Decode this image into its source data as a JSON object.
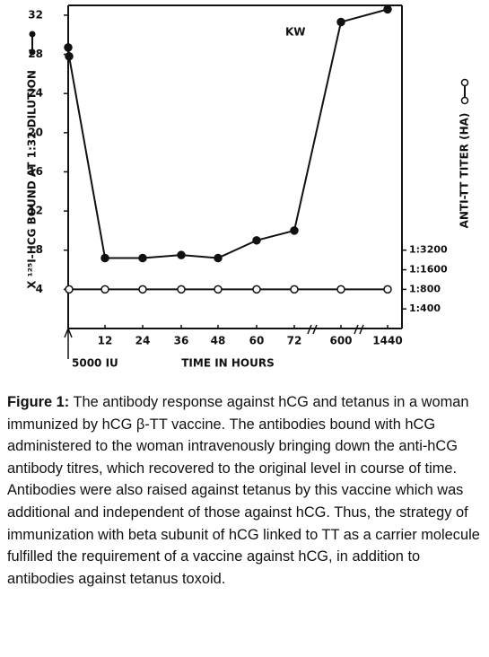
{
  "chart_data": {
    "type": "line",
    "annotations": [
      "KW",
      "5000 IU"
    ],
    "xlabel": "TIME IN HOURS",
    "ylabel": "X ¹²⁵I-HCG BOUND AT 1:32 DILUTION",
    "y2label": "ANTI-TT TITER (HA)",
    "categories": [
      null,
      null,
      "12",
      "24",
      "36",
      "48",
      "60",
      "72",
      "600",
      "1440"
    ],
    "ylim": [
      0,
      33
    ],
    "yticks": [
      4,
      8,
      12,
      16,
      20,
      24,
      28,
      32
    ],
    "y2lim": [
      200,
      18536380
    ],
    "y2scale": "log",
    "y2ticks": [
      {
        "value": 400,
        "label": "1:400"
      },
      {
        "value": 800,
        "label": "1:800"
      },
      {
        "value": 1600,
        "label": "1:1600"
      },
      {
        "value": 3200,
        "label": "1:3200"
      }
    ],
    "series": [
      {
        "name": "hCG",
        "color": "#111111",
        "marker": "filled",
        "values": [
          28.7,
          27.8,
          7.2,
          7.2,
          7.5,
          7.2,
          9,
          10,
          31.3,
          32.6
        ]
      },
      {
        "name": "TT",
        "color": "#111111",
        "marker": "open",
        "axis": "y2",
        "values": [
          null,
          800,
          800,
          800,
          800,
          800,
          800,
          800,
          800,
          800
        ]
      }
    ]
  },
  "caption": {
    "label": "Figure 1:",
    "text": "The antibody response against hCG and tetanus in a woman immunized by hCG β-TT vaccine. The antibodies bound with hCG administered to the woman intravenously bringing down the anti-hCG antibody titres, which recovered to the original level in course of time. Antibodies were also raised against tetanus by this vaccine which was additional and independent of those against hCG. Thus, the strategy of immunization with beta subunit of hCG linked to TT as a carrier molecule fulfilled the requirement of a vaccine against hCG, in addition to antibodies against tetanus toxoid."
  }
}
